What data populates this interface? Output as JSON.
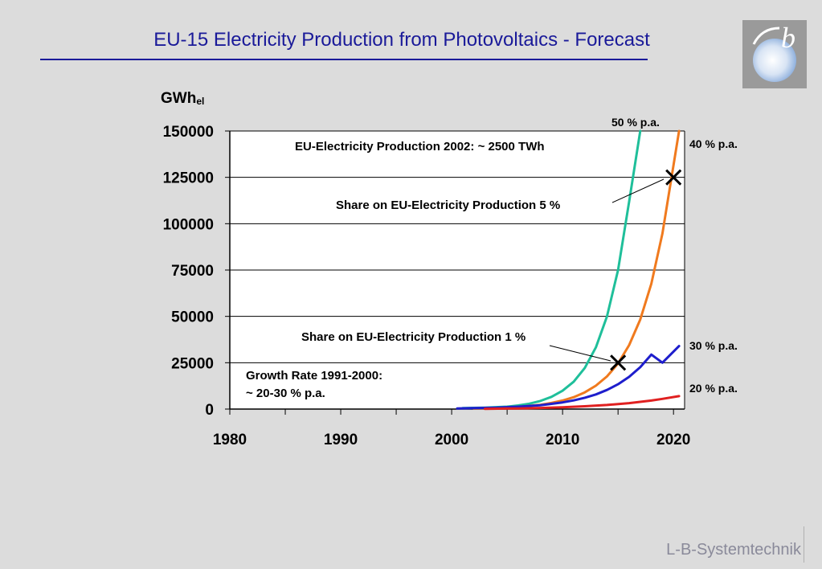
{
  "slide": {
    "title": "EU-15 Electricity Production from Photovoltaics - Forecast",
    "footer": "L-B-Systemtechnik"
  },
  "logo": {
    "letter": "b",
    "icon": "lbst-logo-icon"
  },
  "chart_data": {
    "type": "line",
    "title": "",
    "ylabel_main": "GWh",
    "ylabel_sub": "el",
    "xlabel": "",
    "xlim": [
      1980,
      2020
    ],
    "ylim": [
      0,
      150000
    ],
    "x_ticks": [
      1980,
      1990,
      2000,
      2010,
      2020
    ],
    "y_ticks": [
      0,
      25000,
      50000,
      75000,
      100000,
      125000,
      150000
    ],
    "grid": "horizontal",
    "series": [
      {
        "name": "50 % p.a.",
        "color": "#1fbf9a",
        "x": [
          2001,
          2003,
          2005,
          2006,
          2007,
          2008,
          2009,
          2010,
          2011,
          2012,
          2013,
          2014,
          2015,
          2016,
          2017
        ],
        "y": [
          500,
          800,
          1300,
          1950,
          2900,
          4400,
          6600,
          9900,
          14800,
          22200,
          33300,
          50000,
          75000,
          112000,
          150000
        ]
      },
      {
        "name": "40 % p.a.",
        "color": "#f07a1e",
        "x": [
          2002,
          2004,
          2006,
          2008,
          2009,
          2010,
          2011,
          2012,
          2013,
          2014,
          2015,
          2016,
          2017,
          2018,
          2019,
          2020.5
        ],
        "y": [
          300,
          600,
          1200,
          2300,
          3300,
          4600,
          6400,
          9000,
          12600,
          17600,
          24600,
          34500,
          48300,
          67600,
          94700,
          150000
        ]
      },
      {
        "name": "30 % p.a.",
        "color": "#1e1ecc",
        "x": [
          2000.5,
          2002,
          2004,
          2006,
          2008,
          2010,
          2011,
          2012,
          2013,
          2014,
          2015,
          2016,
          2017,
          2018,
          2019,
          2020.5
        ],
        "y": [
          300,
          500,
          800,
          1300,
          2100,
          3600,
          4700,
          6100,
          7900,
          10300,
          13400,
          17400,
          22600,
          29400,
          25000,
          34000
        ]
      },
      {
        "name": "20 % p.a.",
        "color": "#e02020",
        "x": [
          2003,
          2006,
          2008,
          2010,
          2012,
          2014,
          2016,
          2018,
          2019,
          2020.5
        ],
        "y": [
          150,
          350,
          600,
          1000,
          1500,
          2200,
          3200,
          4600,
          5500,
          7000
        ]
      }
    ],
    "markers": [
      {
        "x": 2015,
        "y": 25000,
        "label": "Share on EU-Electricity Production 1 %"
      },
      {
        "x": 2020,
        "y": 125000,
        "label": "Share on EU-Electricity Production 5 %"
      }
    ],
    "annotations": {
      "production_2002": "EU-Electricity Production 2002: ~ 2500 TWh",
      "growth_line1": "Growth Rate 1991-2000:",
      "growth_line2": "~ 20-30 % p.a."
    }
  }
}
